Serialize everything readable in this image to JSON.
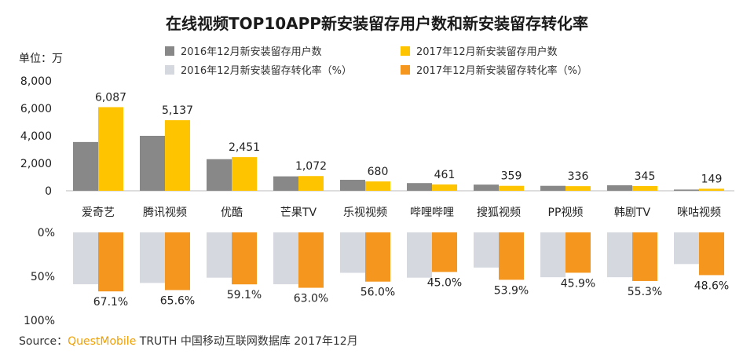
{
  "page": {
    "title": "在线视频TOP10APP新安装留存用户数和新安装留存转化率",
    "unit": "单位：万",
    "source_prefix": "Source：",
    "source_brand": "QuestMobile",
    "source_rest": " TRUTH 中国移动互联网数据库 2017年12月"
  },
  "legend": [
    {
      "label": "2016年12月新安装留存用户数",
      "color": "#888888"
    },
    {
      "label": "2017年12月新安装留存用户数",
      "color": "#ffc400"
    },
    {
      "label": "2016年12月新安装留存转化率（%）",
      "color": "#d5d8df"
    },
    {
      "label": "2017年12月新安装留存转化率（%）",
      "color": "#f5961f"
    }
  ],
  "chart_data": [
    {
      "type": "bar",
      "title": "新安装留存用户数",
      "ylabel": "万",
      "ylim": [
        0,
        8000
      ],
      "yticks": [
        "8,000",
        "6,000",
        "4,000",
        "2,000",
        "0"
      ],
      "categories": [
        "爱奇艺",
        "腾讯视频",
        "优酷",
        "芒果TV",
        "乐视视频",
        "哔哩哔哩",
        "搜狐视频",
        "PP视频",
        "韩剧TV",
        "咪咕视频"
      ],
      "series": [
        {
          "name": "2016年12月新安装留存用户数",
          "color": "#888888",
          "values": [
            3550,
            4000,
            2300,
            1050,
            800,
            560,
            450,
            360,
            400,
            90
          ]
        },
        {
          "name": "2017年12月新安装留存用户数",
          "color": "#ffc400",
          "values": [
            6087,
            5137,
            2451,
            1072,
            680,
            461,
            359,
            336,
            345,
            149
          ]
        }
      ],
      "data_labels": [
        "6,087",
        "5,137",
        "2,451",
        "1,072",
        "680",
        "461",
        "359",
        "336",
        "345",
        "149"
      ]
    },
    {
      "type": "bar",
      "title": "新安装留存转化率",
      "ylabel": "%",
      "ylim": [
        0,
        100
      ],
      "yticks": [
        "0%",
        "50%",
        "100%"
      ],
      "direction": "downward",
      "categories": [
        "爱奇艺",
        "腾讯视频",
        "优酷",
        "芒果TV",
        "乐视视频",
        "哔哩哔哩",
        "搜狐视频",
        "PP视频",
        "韩剧TV",
        "咪咕视频"
      ],
      "series": [
        {
          "name": "2016年12月新安装留存转化率（%）",
          "color": "#d5d8df",
          "values": [
            59.0,
            57.5,
            51.5,
            59.0,
            46.0,
            51.5,
            40.0,
            51.0,
            51.0,
            36.0
          ]
        },
        {
          "name": "2017年12月新安装留存转化率（%）",
          "color": "#f5961f",
          "values": [
            67.1,
            65.6,
            59.1,
            63.0,
            56.0,
            45.0,
            53.9,
            45.9,
            55.3,
            48.6
          ]
        }
      ],
      "data_labels": [
        "67.1%",
        "65.6%",
        "59.1%",
        "63.0%",
        "56.0%",
        "45.0%",
        "53.9%",
        "45.9%",
        "55.3%",
        "48.6%"
      ]
    }
  ]
}
